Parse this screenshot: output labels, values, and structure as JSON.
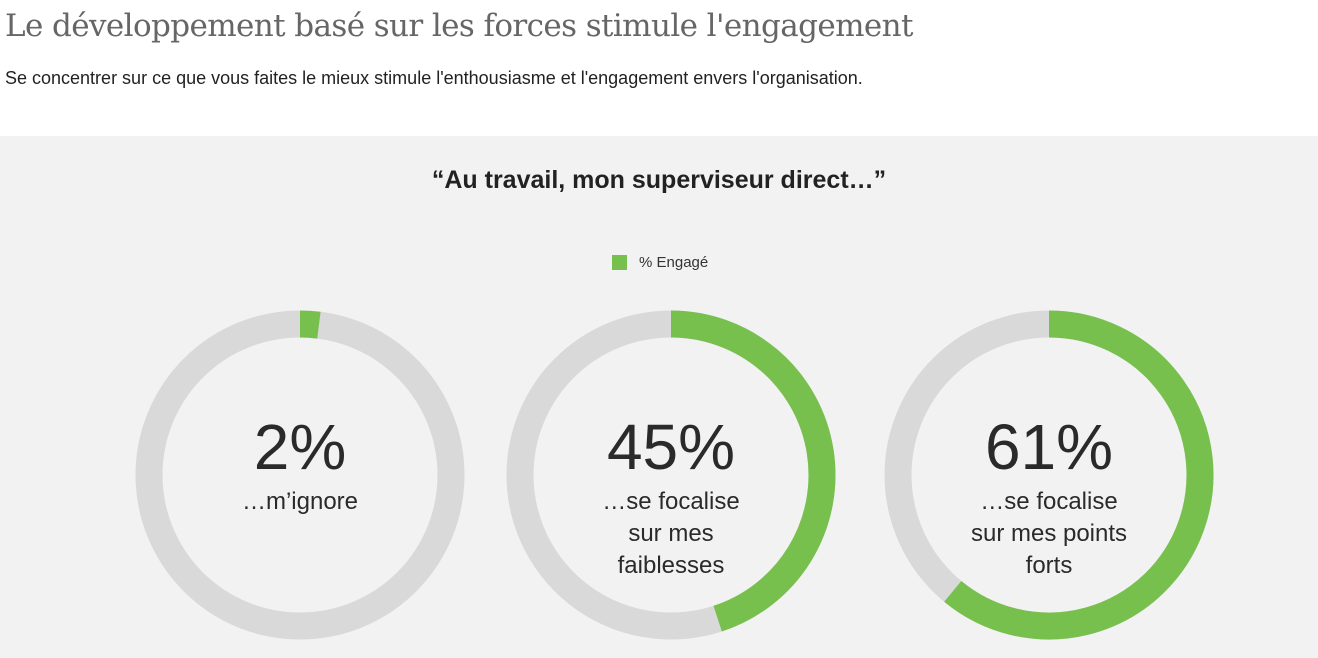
{
  "header": {
    "title": "Le développement basé sur les forces stimule l'engagement",
    "subtitle": "Se concentrer sur ce que vous faites le mieux stimule l'enthousiasme et l'engagement envers l'organisation."
  },
  "colors": {
    "engaged": "#77c04e",
    "track": "#d9d9d9",
    "panel_background": "#f2f2f2"
  },
  "chart_data": {
    "type": "pie",
    "style": "donut",
    "title": "“Au travail, mon superviseur direct…”",
    "legend": {
      "entries": [
        "% Engagé"
      ],
      "placement": "top-center"
    },
    "series": [
      {
        "name": "% Engagé",
        "values": [
          2,
          45,
          61
        ]
      }
    ],
    "categories": [
      "…m’ignore",
      "…se focalise sur mes faiblesses",
      "…se focalise sur mes points forts"
    ],
    "value_labels": [
      "2%",
      "45%",
      "61%"
    ],
    "category_label_lines": [
      [
        "…m’ignore"
      ],
      [
        "…se focalise",
        "sur mes",
        "faiblesses"
      ],
      [
        "…se focalise",
        "sur mes points",
        "forts"
      ]
    ],
    "max": 100
  }
}
